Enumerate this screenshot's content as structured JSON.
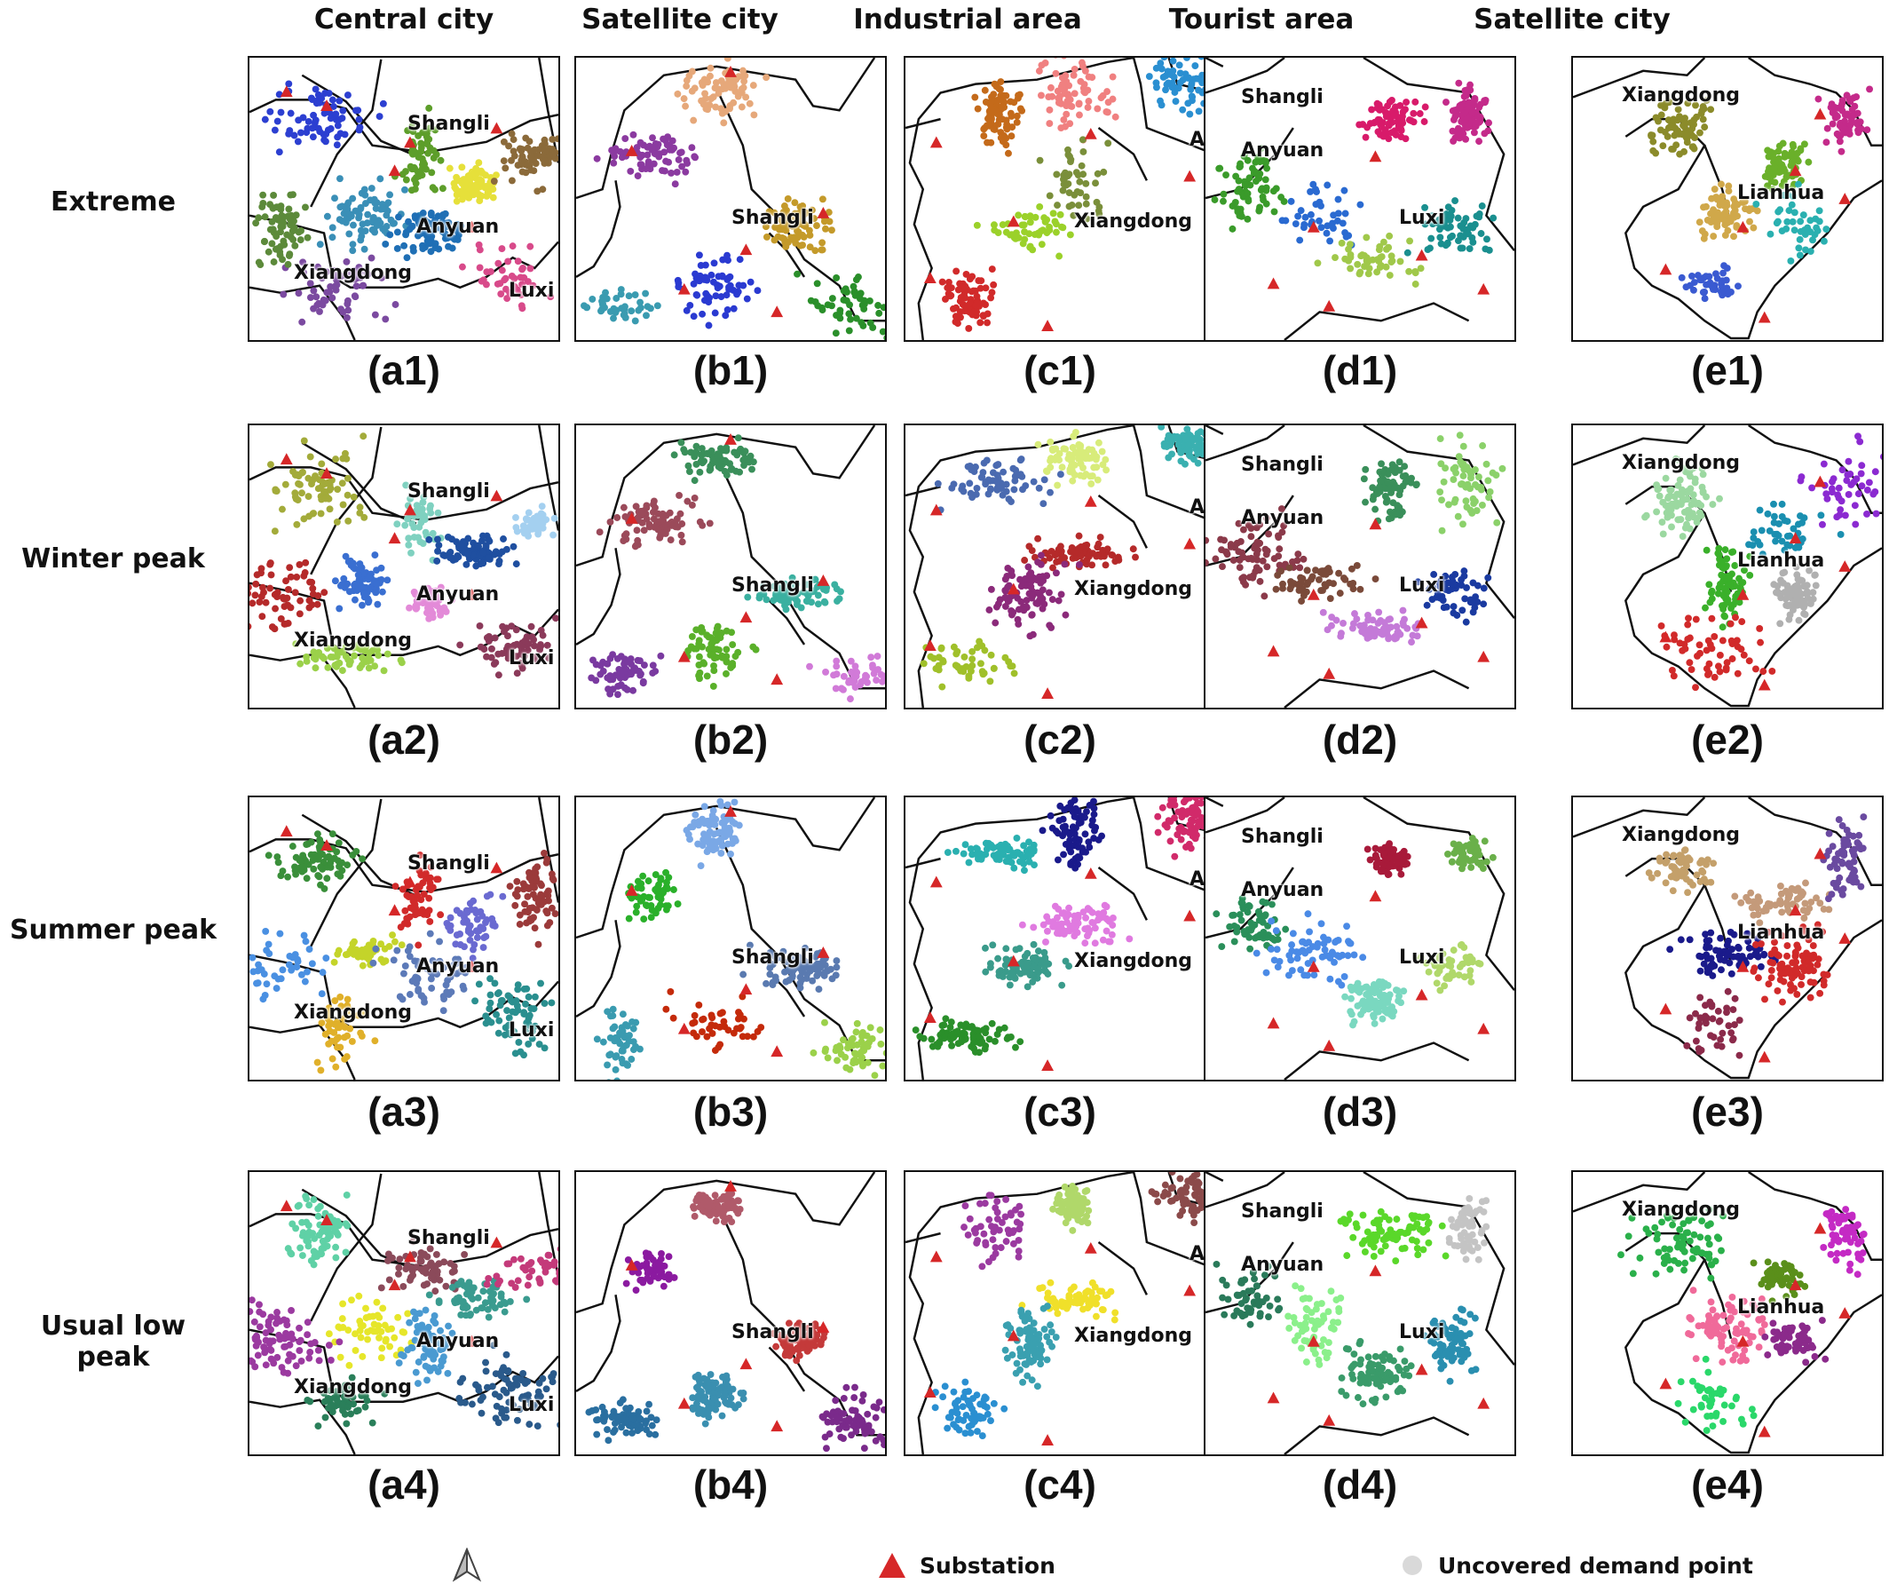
{
  "columns": [
    {
      "label": "Central city"
    },
    {
      "label": "Satellite city"
    },
    {
      "label": "Industrial area"
    },
    {
      "label": "Tourist area"
    },
    {
      "label": "Satellite city"
    }
  ],
  "rows": [
    {
      "label": "Extreme"
    },
    {
      "label": "Winter peak"
    },
    {
      "label": "Summer peak"
    },
    {
      "label": "Usual low peak"
    }
  ],
  "panels": [
    [
      "(a1)",
      "(b1)",
      "(c1)",
      "(d1)",
      "(e1)"
    ],
    [
      "(a2)",
      "(b2)",
      "(c2)",
      "(d2)",
      "(e2)"
    ],
    [
      "(a3)",
      "(b3)",
      "(c3)",
      "(d3)",
      "(e3)"
    ],
    [
      "(a4)",
      "(b4)",
      "(c4)",
      "(d4)",
      "(e4)"
    ]
  ],
  "place_labels": {
    "central": [
      "Shangli",
      "Anyuan",
      "Xiangdong",
      "Luxi"
    ],
    "satellite_b": [
      "Shangli"
    ],
    "industrial": [
      "Xiangdong",
      "Ar"
    ],
    "tourist": [
      "Shangli",
      "Anyuan",
      "Luxi"
    ],
    "satellite_e": [
      "Xiangdong",
      "Lianhua"
    ]
  },
  "legend": {
    "north_arrow_icon": "north-arrow-icon",
    "substation": "Substation",
    "uncovered": "Uncovered demand point",
    "substation_color": "#d62728",
    "uncovered_color": "#d9d9d9"
  },
  "palettes": {
    "a": [
      [
        "#2c3fd1",
        "#5d9e2a",
        "#3a8fb7",
        "#1f6fb5",
        "#7b4aa0",
        "#d84a8a",
        "#5c8a3a",
        "#e6e03a",
        "#8b6a3a"
      ],
      [
        "#a3ab3a",
        "#7fd1c0",
        "#3a6fd1",
        "#e38ad8",
        "#9bd14a",
        "#8b3a5a",
        "#b52a2a",
        "#1f4fa0",
        "#a4d0f0"
      ],
      [
        "#3a8f3a",
        "#d12a2a",
        "#c4d42a",
        "#5c7ab8",
        "#e0b02a",
        "#2a8f8f",
        "#4a90e2",
        "#6a6ad1",
        "#9b3a3a"
      ],
      [
        "#5fd1a6",
        "#8b4a5a",
        "#e6e62a",
        "#4a9ad1",
        "#2a7f5a",
        "#2a5a8b",
        "#9b3aa0",
        "#3a9b8f",
        "#c43a7a"
      ]
    ],
    "b": [
      [
        "#e6a87a",
        "#8b3aa0",
        "#2a3ad1",
        "#c49a2a",
        "#3a9bb0",
        "#2a8f2a"
      ],
      [
        "#3a8f5a",
        "#9b4a5a",
        "#5ab02a",
        "#3ab0a0",
        "#7a3aa0",
        "#d17ad8"
      ],
      [
        "#7aa8e6",
        "#2ab02a",
        "#c42a0a",
        "#5a7ab0",
        "#3a9bb0",
        "#9bd14a"
      ],
      [
        "#b05a6a",
        "#8b1aa0",
        "#3a8fb0",
        "#c43a3a",
        "#2a6fa0",
        "#7a2a8b"
      ]
    ],
    "c": [
      [
        "#f08080",
        "#c46a1a",
        "#7a8f3a",
        "#9bd12a",
        "#2a8fd1",
        "#d12a2a"
      ],
      [
        "#d8ec7a",
        "#4a6ab0",
        "#b52a2a",
        "#8b2a7a",
        "#3ab0b0",
        "#a0c02a"
      ],
      [
        "#1a1a8b",
        "#2ab0b0",
        "#e07ae0",
        "#3a9b8b",
        "#d12a6a",
        "#2a8f2a"
      ],
      [
        "#b0d86a",
        "#9b3aa0",
        "#f0e02a",
        "#3aa0b0",
        "#8b4a4a",
        "#2a8fd1"
      ]
    ],
    "d": [
      [
        "#d81a6a",
        "#3a9b2a",
        "#2a6ad1",
        "#a0c84a",
        "#c42a8a",
        "#1a8f8f"
      ],
      [
        "#3a8f5a",
        "#8b3a4a",
        "#7a4a3a",
        "#c47ad8",
        "#8bd16a",
        "#1a3aa0"
      ],
      [
        "#a81a3a",
        "#2a8f5a",
        "#4a8ae6",
        "#7ad8c0",
        "#6ab04a",
        "#b0d86a"
      ],
      [
        "#5ad82a",
        "#2a7a5a",
        "#8bf08b",
        "#3a9b6a",
        "#c4c4c4",
        "#2a8fb0"
      ]
    ],
    "e": [
      [
        "#d0a84a",
        "#6ab02a",
        "#3a5ad1",
        "#c42a8a",
        "#8b8b2a",
        "#2ab0b0"
      ],
      [
        "#3ab02a",
        "#1a8fb0",
        "#d12a2a",
        "#8b2ad1",
        "#9bd8a0",
        "#b0b0b0"
      ],
      [
        "#1a1a8b",
        "#c49a7a",
        "#8b2a4a",
        "#6a4aa0",
        "#c4a06a",
        "#d12a2a"
      ],
      [
        "#f06a9a",
        "#5a8f1a",
        "#2ad86a",
        "#c42ac4",
        "#2ab04a",
        "#8b2a8b"
      ]
    ]
  }
}
